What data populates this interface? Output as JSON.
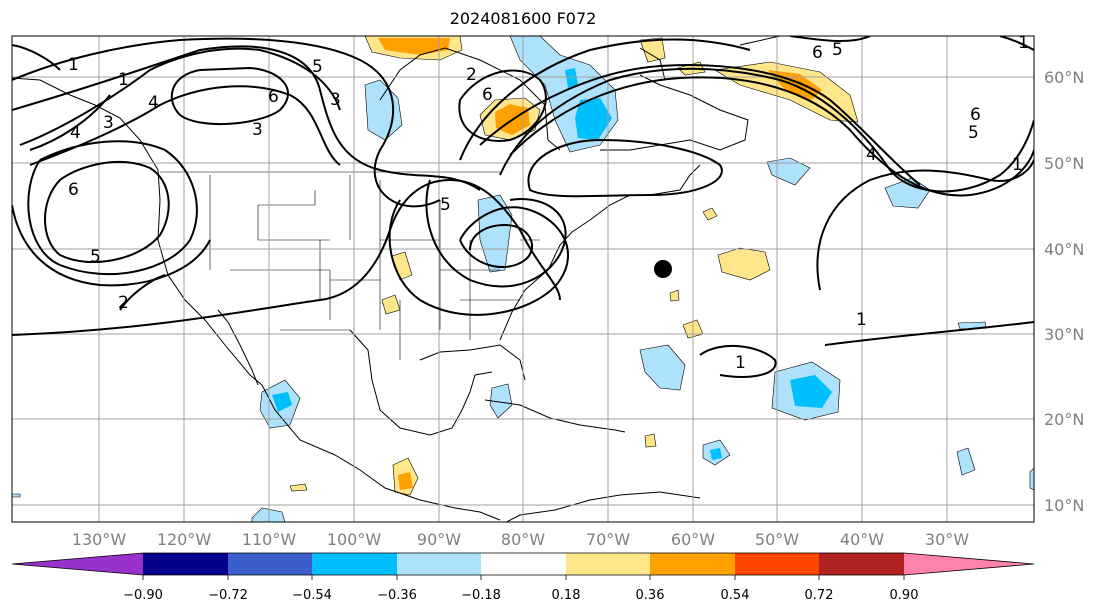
{
  "title": "2024081600 F072",
  "lon_labels": [
    "130°W",
    "120°W",
    "110°W",
    "100°W",
    "90°W",
    "80°W",
    "70°W",
    "60°W",
    "50°W",
    "40°W",
    "30°W"
  ],
  "lat_labels": [
    "60°N",
    "50°N",
    "40°N",
    "30°N",
    "20°N",
    "10°N"
  ],
  "colorbar": {
    "colors": [
      "#9932cc",
      "#00008b",
      "#3a5fcd",
      "#00bfff",
      "#aee1fb",
      "#ffffff",
      "#ffe68a",
      "#ffa000",
      "#ff4500",
      "#b22222",
      "#ff82ab"
    ],
    "tick_labels": [
      "−0.90",
      "−0.72",
      "−0.54",
      "−0.36",
      "−0.18",
      "0.18",
      "0.36",
      "0.54",
      "0.72",
      "0.90"
    ]
  },
  "contour_labels": [
    "1",
    "1",
    "2",
    "3",
    "4",
    "3",
    "4",
    "6",
    "5",
    "6",
    "5",
    "2",
    "3",
    "5",
    "6",
    "6",
    "5",
    "5",
    "6",
    "4",
    "1",
    "1",
    "1",
    "1"
  ],
  "marker": {
    "color": "#000000",
    "lon": -65,
    "lat": 37.5
  }
}
